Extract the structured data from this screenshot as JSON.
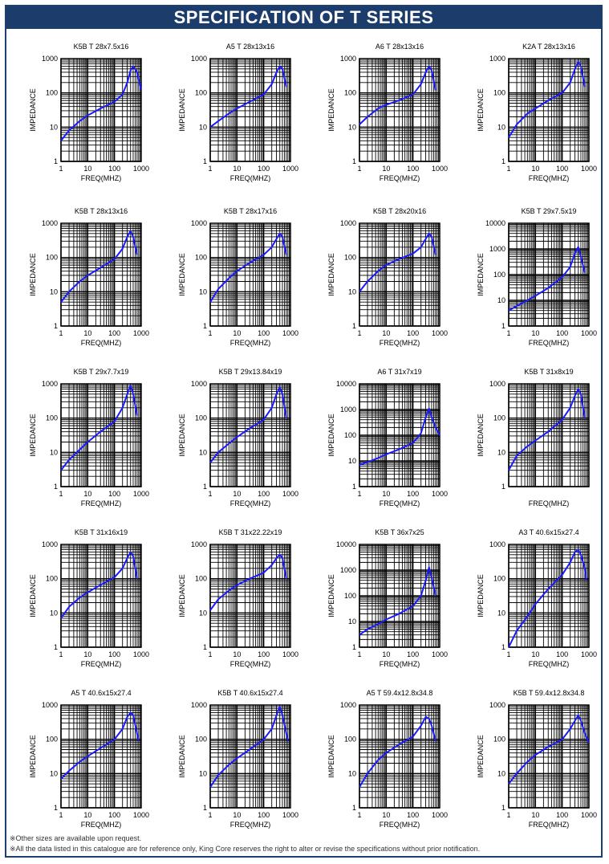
{
  "page": {
    "title": "SPECIFICATION OF T SERIES"
  },
  "notes": [
    "※Other sizes are available upon request.",
    "※All the data listed in this catalogue are for reference only, King Core reserves the right to alter or revise the specifications without prior notification."
  ],
  "colors": {
    "title_bg": "#1c3d6b",
    "curve": "#1a1aff",
    "grid": "#000000"
  },
  "chart_data": [
    {
      "type": "line",
      "title": "K5B T 28x7.5x16",
      "xlabel": "FREQ(MHZ)",
      "ylabel": "IMPEDANCE",
      "xscale": "log",
      "yscale": "log",
      "xlim": [
        1,
        1000
      ],
      "ylim": [
        1,
        1000
      ],
      "x_ticks": [
        "1",
        "10",
        "100",
        "1000"
      ],
      "y_ticks": [
        "1",
        "10",
        "100",
        "1000"
      ],
      "grid": true,
      "x": [
        1,
        2,
        5,
        10,
        30,
        100,
        200,
        300,
        400,
        500,
        700,
        1000
      ],
      "y": [
        4,
        8,
        15,
        22,
        35,
        55,
        90,
        200,
        450,
        600,
        400,
        120
      ]
    },
    {
      "type": "line",
      "title": "A5 T 28x13x16",
      "xlabel": "FREQ(MHZ)",
      "ylabel": "IMPEDANCE",
      "xscale": "log",
      "yscale": "log",
      "xlim": [
        1,
        1000
      ],
      "ylim": [
        1,
        1000
      ],
      "x_ticks": [
        "1",
        "10",
        "100",
        "1000"
      ],
      "y_ticks": [
        "1",
        "10",
        "100",
        "1000"
      ],
      "grid": true,
      "x": [
        1,
        2,
        5,
        10,
        30,
        100,
        200,
        300,
        400,
        500,
        700
      ],
      "y": [
        10,
        15,
        25,
        35,
        55,
        90,
        180,
        400,
        600,
        500,
        150
      ]
    },
    {
      "type": "line",
      "title": "A6 T 28x13x16",
      "xlabel": "FREQ(MHZ)",
      "ylabel": "IMPEDANCE",
      "xscale": "log",
      "yscale": "log",
      "xlim": [
        1,
        1000
      ],
      "ylim": [
        1,
        1000
      ],
      "x_ticks": [
        "1",
        "10",
        "100",
        "1000"
      ],
      "y_ticks": [
        "1",
        "10",
        "100",
        "1000"
      ],
      "grid": true,
      "x": [
        1,
        2,
        5,
        10,
        30,
        100,
        200,
        300,
        400,
        500,
        700
      ],
      "y": [
        12,
        20,
        35,
        45,
        60,
        90,
        180,
        400,
        600,
        450,
        120
      ]
    },
    {
      "type": "line",
      "title": "K2A T 28x13x16",
      "xlabel": "FREQ(MHZ)",
      "ylabel": "IMPEDANCE",
      "xscale": "log",
      "yscale": "log",
      "xlim": [
        1,
        1000
      ],
      "ylim": [
        1,
        1000
      ],
      "x_ticks": [
        "1",
        "10",
        "100",
        "1000"
      ],
      "y_ticks": [
        "1",
        "10",
        "100",
        "1000"
      ],
      "grid": true,
      "x": [
        1,
        2,
        5,
        10,
        30,
        100,
        200,
        300,
        400,
        500,
        700
      ],
      "y": [
        5,
        12,
        25,
        35,
        60,
        100,
        200,
        500,
        800,
        600,
        150
      ]
    },
    {
      "type": "line",
      "title": "K5B T 28x13x16",
      "xlabel": "FREQ(MHZ)",
      "ylabel": "IMPEDANCE",
      "xscale": "log",
      "yscale": "log",
      "xlim": [
        1,
        1000
      ],
      "ylim": [
        1,
        1000
      ],
      "x_ticks": [
        "1",
        "10",
        "100",
        "1000"
      ],
      "y_ticks": [
        "1",
        "10",
        "100",
        "1000"
      ],
      "grid": true,
      "x": [
        1,
        2,
        5,
        10,
        30,
        100,
        200,
        300,
        400,
        500,
        700
      ],
      "y": [
        5,
        10,
        20,
        30,
        50,
        90,
        180,
        400,
        600,
        400,
        120
      ]
    },
    {
      "type": "line",
      "title": "K5B T 28x17x16",
      "xlabel": "FREQ(MHZ)",
      "ylabel": "IMPEDANCE",
      "xscale": "log",
      "yscale": "log",
      "xlim": [
        1,
        1000
      ],
      "ylim": [
        1,
        1000
      ],
      "x_ticks": [
        "1",
        "10",
        "100",
        "1000"
      ],
      "y_ticks": [
        "1",
        "10",
        "100",
        "1000"
      ],
      "grid": true,
      "x": [
        1,
        2,
        5,
        10,
        30,
        100,
        200,
        300,
        400,
        500,
        700
      ],
      "y": [
        5,
        12,
        25,
        40,
        70,
        120,
        200,
        350,
        500,
        400,
        120
      ]
    },
    {
      "type": "line",
      "title": "K5B T 28x20x16",
      "xlabel": "FREQ(MHZ)",
      "ylabel": "IMPEDANCE",
      "xscale": "log",
      "yscale": "log",
      "xlim": [
        1,
        1000
      ],
      "ylim": [
        1,
        1000
      ],
      "x_ticks": [
        "1",
        "10",
        "100",
        "1000"
      ],
      "y_ticks": [
        "1",
        "10",
        "100",
        "1000"
      ],
      "grid": true,
      "x": [
        1,
        2,
        5,
        10,
        30,
        100,
        200,
        300,
        400,
        500,
        700
      ],
      "y": [
        10,
        20,
        40,
        60,
        90,
        130,
        200,
        350,
        500,
        400,
        120
      ]
    },
    {
      "type": "line",
      "title": "K5B T 29x7.5x19",
      "xlabel": "FREQ(MHZ)",
      "ylabel": "IMPEDANCE",
      "xscale": "log",
      "yscale": "log",
      "xlim": [
        1,
        1000
      ],
      "ylim": [
        1,
        10000
      ],
      "x_ticks": [
        "1",
        "10",
        "100",
        "1000"
      ],
      "y_ticks": [
        "1",
        "10",
        "100",
        "1000",
        "10000"
      ],
      "grid": true,
      "x": [
        1,
        2,
        5,
        10,
        30,
        100,
        200,
        300,
        400,
        500,
        700
      ],
      "y": [
        4,
        6,
        10,
        15,
        30,
        80,
        200,
        700,
        1200,
        500,
        120
      ]
    },
    {
      "type": "line",
      "title": "K5B T 29x7.7x19",
      "xlabel": "FREQ(MHZ)",
      "ylabel": "IMPEDANCE",
      "xscale": "log",
      "yscale": "log",
      "xlim": [
        1,
        1000
      ],
      "ylim": [
        1,
        1000
      ],
      "x_ticks": [
        "1",
        "10",
        "100",
        "1000"
      ],
      "y_ticks": [
        "1",
        "10",
        "100",
        "1000"
      ],
      "grid": true,
      "x": [
        1,
        2,
        5,
        10,
        30,
        100,
        200,
        300,
        400,
        500,
        700
      ],
      "y": [
        3,
        6,
        12,
        20,
        40,
        80,
        200,
        500,
        900,
        500,
        120
      ]
    },
    {
      "type": "line",
      "title": "K5B T 29x13.84x19",
      "xlabel": "FREQ(MHZ)",
      "ylabel": "IMPEDANCE",
      "xscale": "log",
      "yscale": "log",
      "xlim": [
        1,
        1000
      ],
      "ylim": [
        1,
        1000
      ],
      "x_ticks": [
        "1",
        "10",
        "100",
        "1000"
      ],
      "y_ticks": [
        "1",
        "10",
        "100",
        "1000"
      ],
      "grid": true,
      "x": [
        1,
        2,
        5,
        10,
        30,
        100,
        200,
        300,
        400,
        500,
        700
      ],
      "y": [
        5,
        10,
        18,
        28,
        50,
        90,
        200,
        500,
        800,
        500,
        100
      ]
    },
    {
      "type": "line",
      "title": "A6 T 31x7x19",
      "xlabel": "FREQ(MHZ)",
      "ylabel": "IMPEDANCE",
      "xscale": "log",
      "yscale": "log",
      "xlim": [
        1,
        1000
      ],
      "ylim": [
        1,
        10000
      ],
      "x_ticks": [
        "1",
        "10",
        "100",
        "1000"
      ],
      "y_ticks": [
        "1",
        "10",
        "100",
        "1000",
        "10000"
      ],
      "grid": true,
      "x": [
        1,
        2,
        5,
        10,
        30,
        100,
        200,
        300,
        400,
        500,
        700,
        1000
      ],
      "y": [
        7,
        9,
        13,
        18,
        28,
        50,
        120,
        500,
        1100,
        500,
        200,
        100
      ]
    },
    {
      "type": "line",
      "title": "K5B T 31x8x19",
      "xlabel": "FREQ(MHZ)",
      "ylabel": "IMPEDANCE",
      "xscale": "log",
      "yscale": "log",
      "xlim": [
        1,
        1000
      ],
      "ylim": [
        1,
        1000
      ],
      "x_ticks": [],
      "y_ticks": [
        "1",
        "10",
        "100",
        "1000"
      ],
      "grid": true,
      "x": [
        1,
        2,
        5,
        10,
        30,
        100,
        200,
        300,
        400,
        500,
        700
      ],
      "y": [
        3,
        8,
        15,
        22,
        40,
        90,
        200,
        450,
        700,
        500,
        100
      ]
    },
    {
      "type": "line",
      "title": "K5B T 31x16x19",
      "xlabel": "FREQ(MHZ)",
      "ylabel": "IMPEDANCE",
      "xscale": "log",
      "yscale": "log",
      "xlim": [
        1,
        1000
      ],
      "ylim": [
        1,
        1000
      ],
      "x_ticks": [
        "1",
        "10",
        "100",
        "1000"
      ],
      "y_ticks": [
        "1",
        "10",
        "100",
        "1000"
      ],
      "grid": true,
      "x": [
        1,
        2,
        5,
        10,
        30,
        100,
        200,
        300,
        400,
        500,
        700
      ],
      "y": [
        7,
        15,
        28,
        40,
        65,
        110,
        200,
        400,
        600,
        450,
        100
      ]
    },
    {
      "type": "line",
      "title": "K5B T 31x22.22x19",
      "xlabel": "FREQ(MHZ)",
      "ylabel": "IMPEDANCE",
      "xscale": "log",
      "yscale": "log",
      "xlim": [
        1,
        1000
      ],
      "ylim": [
        1,
        1000
      ],
      "x_ticks": [
        "1",
        "10",
        "100",
        "1000"
      ],
      "y_ticks": [
        "1",
        "10",
        "100",
        "1000"
      ],
      "grid": true,
      "x": [
        1,
        2,
        5,
        10,
        30,
        100,
        200,
        300,
        400,
        500,
        700
      ],
      "y": [
        12,
        25,
        45,
        65,
        100,
        150,
        250,
        400,
        500,
        400,
        100
      ]
    },
    {
      "type": "line",
      "title": "K5B T 36x7x25",
      "xlabel": "FREQ(MHZ)",
      "ylabel": "IMPEDANCE",
      "xscale": "log",
      "yscale": "log",
      "xlim": [
        1,
        1000
      ],
      "ylim": [
        1,
        10000
      ],
      "x_ticks": [
        "1",
        "10",
        "100",
        "1000"
      ],
      "y_ticks": [
        "1",
        "10",
        "100",
        "1000",
        "10000"
      ],
      "grid": true,
      "x": [
        1,
        2,
        5,
        10,
        30,
        100,
        200,
        300,
        400,
        500,
        700
      ],
      "y": [
        3,
        5,
        8,
        12,
        20,
        40,
        100,
        400,
        1300,
        500,
        100
      ]
    },
    {
      "type": "line",
      "title": "A3 T 40.6x15x27.4",
      "xlabel": "FREQ(MHZ)",
      "ylabel": "IMPEDANCE",
      "xscale": "log",
      "yscale": "log",
      "xlim": [
        1,
        1000
      ],
      "ylim": [
        1,
        1000
      ],
      "x_ticks": [
        "1",
        "10",
        "100",
        "1000"
      ],
      "y_ticks": [
        "1",
        "10",
        "100",
        "1000"
      ],
      "grid": true,
      "x": [
        1,
        2,
        5,
        10,
        30,
        100,
        200,
        300,
        400,
        500,
        700,
        800
      ],
      "y": [
        1,
        3,
        8,
        18,
        50,
        130,
        300,
        600,
        700,
        500,
        200,
        90
      ]
    },
    {
      "type": "line",
      "title": "A5 T 40.6x15x27.4",
      "xlabel": "FREQ(MHZ)",
      "ylabel": "IMPEDANCE",
      "xscale": "log",
      "yscale": "log",
      "xlim": [
        1,
        1000
      ],
      "ylim": [
        1,
        1000
      ],
      "x_ticks": [
        "1",
        "10",
        "100",
        "1000"
      ],
      "y_ticks": [
        "1",
        "10",
        "100",
        "1000"
      ],
      "grid": true,
      "x": [
        1,
        2,
        5,
        10,
        30,
        100,
        200,
        300,
        400,
        500,
        700,
        800
      ],
      "y": [
        7,
        12,
        22,
        32,
        55,
        100,
        200,
        450,
        600,
        500,
        150,
        90
      ]
    },
    {
      "type": "line",
      "title": "K5B T 40.6x15x27.4",
      "xlabel": "FREQ(MHZ)",
      "ylabel": "IMPEDANCE",
      "xscale": "log",
      "yscale": "log",
      "xlim": [
        1,
        1000
      ],
      "ylim": [
        1,
        1000
      ],
      "x_ticks": [
        "1",
        "10",
        "100",
        "1000"
      ],
      "y_ticks": [
        "1",
        "10",
        "100",
        "1000"
      ],
      "grid": true,
      "x": [
        1,
        2,
        5,
        10,
        30,
        100,
        200,
        300,
        400,
        500,
        700,
        800
      ],
      "y": [
        4,
        9,
        18,
        28,
        50,
        100,
        200,
        500,
        900,
        500,
        150,
        90
      ]
    },
    {
      "type": "line",
      "title": "A5 T 59.4x12.8x34.8",
      "xlabel": "FREQ(MHZ)",
      "ylabel": "IMPEDANCE",
      "xscale": "log",
      "yscale": "log",
      "xlim": [
        1,
        1000
      ],
      "ylim": [
        1,
        1000
      ],
      "x_ticks": [
        "1",
        "10",
        "100",
        "1000"
      ],
      "y_ticks": [
        "1",
        "10",
        "100",
        "1000"
      ],
      "grid": true,
      "x": [
        1,
        2,
        5,
        10,
        30,
        100,
        200,
        300,
        400,
        500,
        700
      ],
      "y": [
        4,
        10,
        25,
        40,
        70,
        120,
        250,
        450,
        400,
        250,
        90
      ]
    },
    {
      "type": "line",
      "title": "K5B T 59.4x12.8x34.8",
      "xlabel": "FREQ(MHZ)",
      "ylabel": "IMPEDANCE",
      "xscale": "log",
      "yscale": "log",
      "xlim": [
        1,
        1000
      ],
      "ylim": [
        1,
        1000
      ],
      "x_ticks": [
        "1",
        "10",
        "100",
        "1000"
      ],
      "y_ticks": [
        "1",
        "10",
        "100",
        "1000"
      ],
      "grid": true,
      "x": [
        1,
        2,
        5,
        10,
        30,
        100,
        200,
        300,
        400,
        500,
        700,
        1000
      ],
      "y": [
        5,
        10,
        22,
        35,
        60,
        100,
        200,
        350,
        500,
        350,
        150,
        80
      ]
    }
  ]
}
